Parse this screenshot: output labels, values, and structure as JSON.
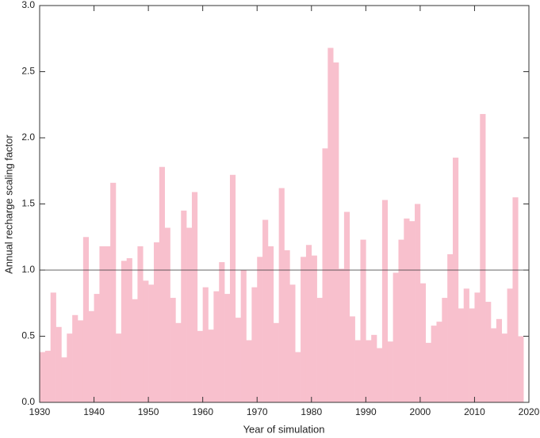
{
  "chart_data": {
    "type": "bar",
    "x_label": "Year of simulation",
    "y_label": "Annual recharge scaling factor",
    "x": [
      1930,
      1931,
      1932,
      1933,
      1934,
      1935,
      1936,
      1937,
      1938,
      1939,
      1940,
      1941,
      1942,
      1943,
      1944,
      1945,
      1946,
      1947,
      1948,
      1949,
      1950,
      1951,
      1952,
      1953,
      1954,
      1955,
      1956,
      1957,
      1958,
      1959,
      1960,
      1961,
      1962,
      1963,
      1964,
      1965,
      1966,
      1967,
      1968,
      1969,
      1970,
      1971,
      1972,
      1973,
      1974,
      1975,
      1976,
      1977,
      1978,
      1979,
      1980,
      1981,
      1982,
      1983,
      1984,
      1985,
      1986,
      1987,
      1988,
      1989,
      1990,
      1991,
      1992,
      1993,
      1994,
      1995,
      1996,
      1997,
      1998,
      1999,
      2000,
      2001,
      2002,
      2003,
      2004,
      2005,
      2006,
      2007,
      2008,
      2009,
      2010,
      2011,
      2012,
      2013,
      2014,
      2015,
      2016,
      2017,
      2018
    ],
    "values": [
      0.38,
      0.39,
      0.83,
      0.57,
      0.34,
      0.52,
      0.66,
      0.62,
      1.25,
      0.69,
      0.82,
      1.18,
      1.18,
      1.66,
      0.52,
      1.07,
      1.09,
      0.78,
      1.18,
      0.92,
      0.89,
      1.21,
      1.78,
      1.32,
      0.79,
      0.6,
      1.45,
      1.32,
      1.59,
      0.54,
      0.87,
      0.55,
      0.84,
      1.06,
      0.82,
      1.72,
      0.64,
      1.0,
      0.47,
      0.87,
      1.1,
      1.38,
      1.18,
      0.6,
      1.62,
      1.15,
      0.89,
      0.38,
      1.1,
      1.19,
      1.11,
      0.79,
      1.92,
      2.68,
      2.57,
      1.01,
      1.44,
      0.65,
      0.47,
      1.23,
      0.47,
      0.51,
      0.41,
      1.53,
      0.46,
      0.98,
      1.23,
      1.39,
      1.37,
      1.5,
      0.9,
      0.45,
      0.58,
      0.61,
      0.79,
      1.12,
      1.85,
      0.71,
      0.86,
      0.71,
      0.83,
      2.18,
      0.76,
      0.56,
      0.63,
      0.52,
      0.86,
      1.55,
      0.5
    ],
    "color": "#f8c0cd",
    "reference_line": 1,
    "xlim": [
      1930,
      2020
    ],
    "xticks": [
      1930,
      1940,
      1950,
      1960,
      1970,
      1980,
      1990,
      2000,
      2010,
      2020
    ],
    "ylim": [
      0,
      3
    ],
    "yticks": [
      {
        "value": 0,
        "label": "0.0"
      },
      {
        "value": 0.5,
        "label": "0.5"
      },
      {
        "value": 1,
        "label": "1.0"
      },
      {
        "value": 1.5,
        "label": "1.5"
      },
      {
        "value": 2,
        "label": "2.0"
      },
      {
        "value": 2.5,
        "label": "2.5"
      },
      {
        "value": 3,
        "label": "3.0"
      }
    ]
  }
}
